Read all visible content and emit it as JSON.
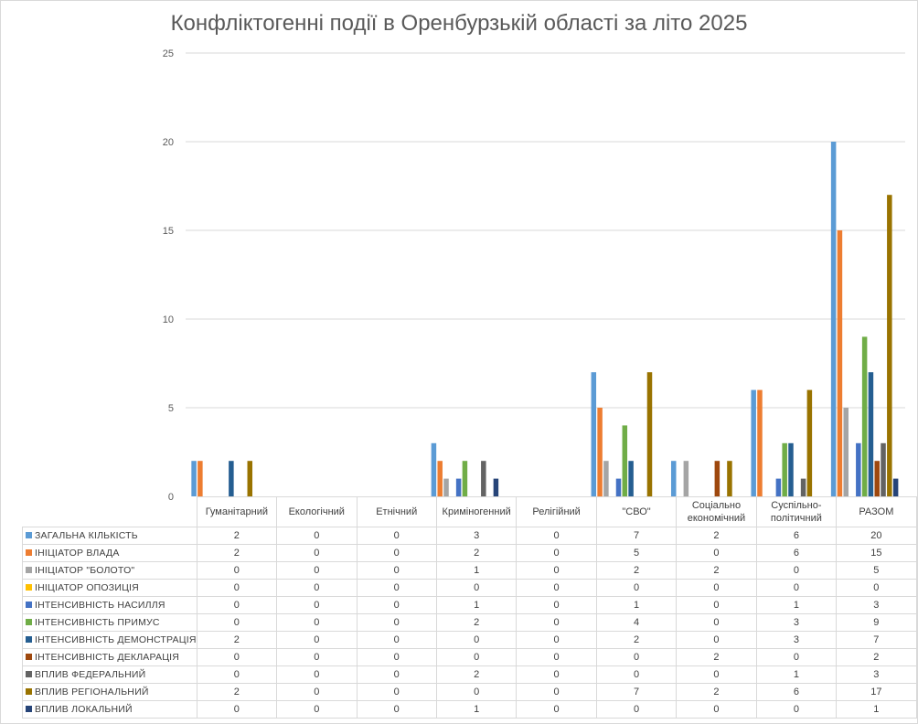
{
  "chart_data": {
    "type": "bar",
    "title": "Конфліктогенні події в Оренбурзькій області за літо 2025",
    "categories": [
      "Гуманітарний",
      "Екологічний",
      "Етнічний",
      "Криміногенний",
      "Релігійний",
      "\"СВО\"",
      "Соціально економічний",
      "Суспільно-політичний",
      "РАЗОМ"
    ],
    "ylim": [
      0,
      25
    ],
    "yticks": [
      0,
      5,
      10,
      15,
      20,
      25
    ],
    "grid": true,
    "legend": "data-table",
    "series": [
      {
        "name": "ЗАГАЛЬНА КІЛЬКІСТЬ",
        "color": "#5b9bd5",
        "values": [
          2,
          0,
          0,
          3,
          0,
          7,
          2,
          6,
          20
        ]
      },
      {
        "name": "ІНІЦІАТОР ВЛАДА",
        "color": "#ed7d31",
        "values": [
          2,
          0,
          0,
          2,
          0,
          5,
          0,
          6,
          15
        ]
      },
      {
        "name": "ІНІЦІАТОР \"БОЛОТО\"",
        "color": "#a5a5a5",
        "values": [
          0,
          0,
          0,
          1,
          0,
          2,
          2,
          0,
          5
        ]
      },
      {
        "name": "ІНІЦІАТОР ОПОЗИЦІЯ",
        "color": "#ffc000",
        "values": [
          0,
          0,
          0,
          0,
          0,
          0,
          0,
          0,
          0
        ]
      },
      {
        "name": "ІНТЕНСИВНІСТЬ НАСИЛЛЯ",
        "color": "#4472c4",
        "values": [
          0,
          0,
          0,
          1,
          0,
          1,
          0,
          1,
          3
        ]
      },
      {
        "name": "ІНТЕНСИВНІСТЬ ПРИМУС",
        "color": "#70ad47",
        "values": [
          0,
          0,
          0,
          2,
          0,
          4,
          0,
          3,
          9
        ]
      },
      {
        "name": "ІНТЕНСИВНІСТЬ ДЕМОНСТРАЦІЯ",
        "color": "#255e91",
        "values": [
          2,
          0,
          0,
          0,
          0,
          2,
          0,
          3,
          7
        ]
      },
      {
        "name": "ІНТЕНСИВНІСТЬ ДЕКЛАРАЦІЯ",
        "color": "#9e480e",
        "values": [
          0,
          0,
          0,
          0,
          0,
          0,
          2,
          0,
          2
        ]
      },
      {
        "name": "ВПЛИВ ФЕДЕРАЛЬНИЙ",
        "color": "#636363",
        "values": [
          0,
          0,
          0,
          2,
          0,
          0,
          0,
          1,
          3
        ]
      },
      {
        "name": "ВПЛИВ РЕГІОНАЛЬНИЙ",
        "color": "#997300",
        "values": [
          2,
          0,
          0,
          0,
          0,
          7,
          2,
          6,
          17
        ]
      },
      {
        "name": "ВПЛИВ ЛОКАЛЬНИЙ",
        "color": "#264478",
        "values": [
          0,
          0,
          0,
          1,
          0,
          0,
          0,
          0,
          1
        ]
      }
    ]
  }
}
